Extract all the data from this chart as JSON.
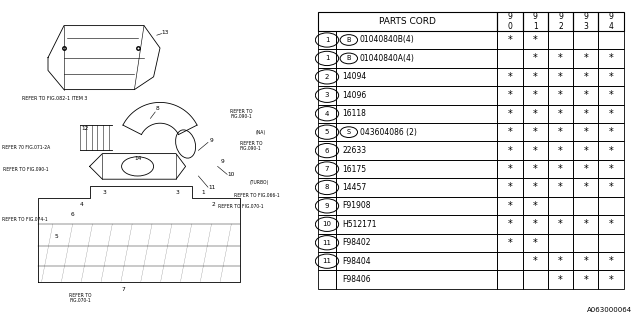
{
  "bg_color": "#ffffff",
  "table_header": "PARTS CORD",
  "year_cols": [
    "9\n0",
    "9\n1",
    "9\n2",
    "9\n3",
    "9\n4"
  ],
  "rows": [
    {
      "item": "1",
      "prefix": "B",
      "part": "01040840B(4)",
      "stars": [
        1,
        1,
        0,
        0,
        0
      ]
    },
    {
      "item": "1",
      "prefix": "B",
      "part": "01040840A(4)",
      "stars": [
        0,
        1,
        1,
        1,
        1
      ]
    },
    {
      "item": "2",
      "prefix": "",
      "part": "14094",
      "stars": [
        1,
        1,
        1,
        1,
        1
      ]
    },
    {
      "item": "3",
      "prefix": "",
      "part": "14096",
      "stars": [
        1,
        1,
        1,
        1,
        1
      ]
    },
    {
      "item": "4",
      "prefix": "",
      "part": "16118",
      "stars": [
        1,
        1,
        1,
        1,
        1
      ]
    },
    {
      "item": "5",
      "prefix": "S",
      "part": "043604086 (2)",
      "stars": [
        1,
        1,
        1,
        1,
        1
      ]
    },
    {
      "item": "6",
      "prefix": "",
      "part": "22633",
      "stars": [
        1,
        1,
        1,
        1,
        1
      ]
    },
    {
      "item": "7",
      "prefix": "",
      "part": "16175",
      "stars": [
        1,
        1,
        1,
        1,
        1
      ]
    },
    {
      "item": "8",
      "prefix": "",
      "part": "14457",
      "stars": [
        1,
        1,
        1,
        1,
        1
      ]
    },
    {
      "item": "9",
      "prefix": "",
      "part": "F91908",
      "stars": [
        1,
        1,
        0,
        0,
        0
      ]
    },
    {
      "item": "10",
      "prefix": "",
      "part": "H512171",
      "stars": [
        1,
        1,
        1,
        1,
        1
      ]
    },
    {
      "item": "11",
      "prefix": "",
      "part": "F98402",
      "stars": [
        1,
        1,
        0,
        0,
        0
      ]
    },
    {
      "item": "11",
      "prefix": "",
      "part": "F98404",
      "stars": [
        0,
        1,
        1,
        1,
        1
      ]
    },
    {
      "item": "",
      "prefix": "",
      "part": "F98406",
      "stars": [
        0,
        0,
        1,
        1,
        1
      ]
    }
  ],
  "watermark": "A063000064"
}
